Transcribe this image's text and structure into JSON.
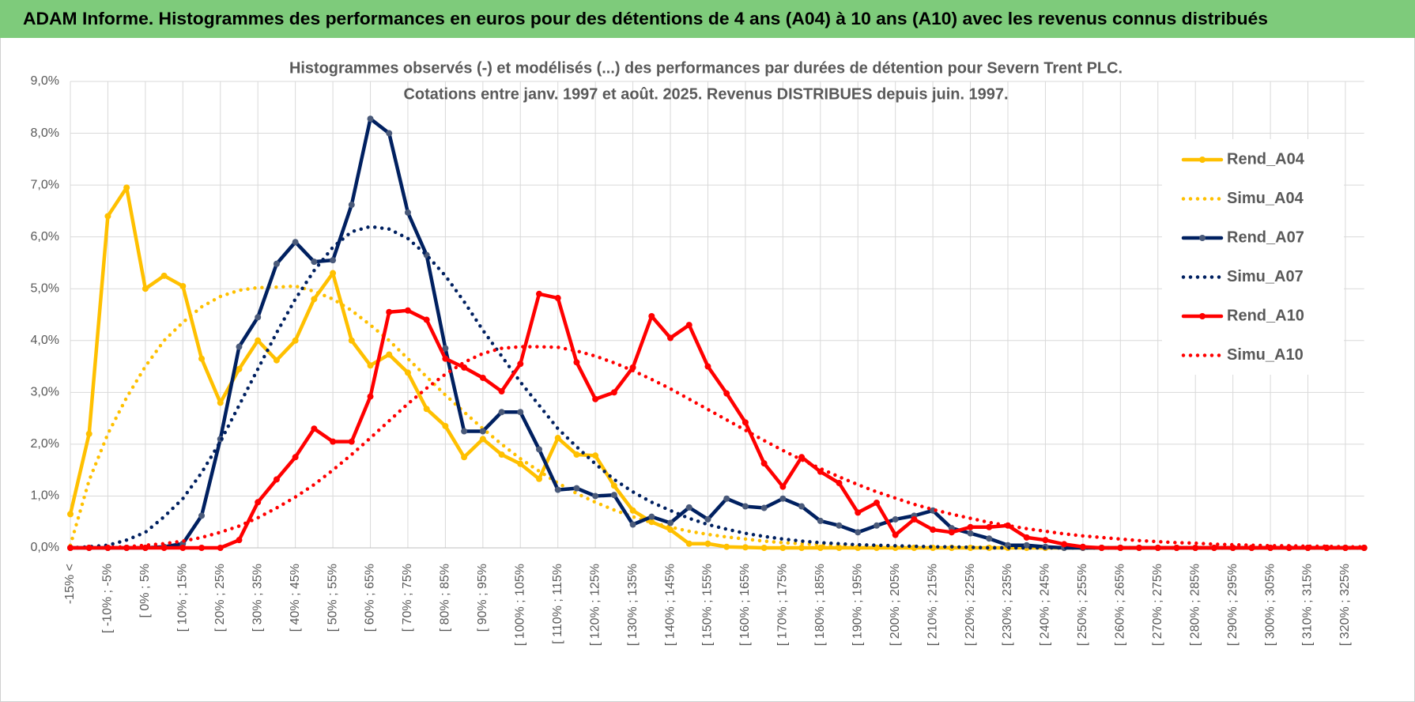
{
  "page_title": "ADAM Informe. Histogrammes des performances en euros pour des détentions de 4 ans (A04) à 10 ans (A10) avec les revenus connus distribués",
  "chart_data": {
    "type": "line",
    "title": [
      "Histogrammes observés (-) et modélisés (...) des performances par durées de détention pour Severn Trent PLC.",
      "Cotations entre janv. 1997 et août. 2025. Revenus DISTRIBUES depuis juin. 1997."
    ],
    "categories": [
      "-15% <",
      null,
      "[ -10% ; -5%",
      null,
      "[ 0% ; 5%",
      null,
      "[ 10% ; 15%",
      null,
      "[ 20% ; 25%",
      null,
      "[ 30% ; 35%",
      null,
      "[ 40% ; 45%",
      null,
      "[ 50% ; 55%",
      null,
      "[ 60% ; 65%",
      null,
      "[ 70% ; 75%",
      null,
      "[ 80% ; 85%",
      null,
      "[ 90% ; 95%",
      null,
      "[ 100% ; 105%",
      null,
      "[ 110% ; 115%",
      null,
      "[ 120% ; 125%",
      null,
      "[ 130% ; 135%",
      null,
      "[ 140% ; 145%",
      null,
      "[ 150% ; 155%",
      null,
      "[ 160% ; 165%",
      null,
      "[ 170% ; 175%",
      null,
      "[ 180% ; 185%",
      null,
      "[ 190% ; 195%",
      null,
      "[ 200% ; 205%",
      null,
      "[ 210% ; 215%",
      null,
      "[ 220% ; 225%",
      null,
      "[ 230% ; 235%",
      null,
      "[ 240% ; 245%",
      null,
      "[ 250% ; 255%",
      null,
      "[ 260% ; 265%",
      null,
      "[ 270% ; 275%",
      null,
      "[ 280% ; 285%",
      null,
      "[ 290% ; 295%",
      null,
      "[ 300% ; 305%",
      null,
      "[ 310% ; 315%",
      null,
      "[ 320% ; 325%",
      null
    ],
    "ylim": [
      0,
      9
    ],
    "yticks": [
      {
        "value": 0,
        "label": "0,0%"
      },
      {
        "value": 1,
        "label": "1,0%"
      },
      {
        "value": 2,
        "label": "2,0%"
      },
      {
        "value": 3,
        "label": "3,0%"
      },
      {
        "value": 4,
        "label": "4,0%"
      },
      {
        "value": 5,
        "label": "5,0%"
      },
      {
        "value": 6,
        "label": "6,0%"
      },
      {
        "value": 7,
        "label": "7,0%"
      },
      {
        "value": 8,
        "label": "8,0%"
      },
      {
        "value": 9,
        "label": "9,0%"
      }
    ],
    "grid": true,
    "legend": "right",
    "series": [
      {
        "name": "Rend_A04",
        "color": "#FFC000",
        "line_style": "solid",
        "marker_color": "#FFC000",
        "values": [
          0.65,
          2.2,
          6.4,
          6.95,
          5.0,
          5.25,
          5.05,
          3.65,
          2.8,
          3.45,
          4.0,
          3.62,
          4.0,
          4.8,
          5.3,
          4.0,
          3.52,
          3.73,
          3.38,
          2.68,
          2.35,
          1.75,
          2.1,
          1.8,
          1.62,
          1.33,
          2.12,
          1.8,
          1.78,
          1.2,
          0.72,
          0.5,
          0.35,
          0.08,
          0.08,
          0.02,
          0.01,
          0,
          0,
          0,
          0,
          0,
          0,
          0,
          0,
          0,
          0,
          0,
          0,
          0,
          0,
          0,
          0,
          0,
          0,
          0,
          0,
          0,
          0,
          0,
          0,
          0,
          0,
          0,
          0,
          0,
          0,
          0,
          0,
          0
        ]
      },
      {
        "name": "Simu_A04",
        "color": "#FFC000",
        "line_style": "dotted",
        "values": [
          0.05,
          1.3,
          2.2,
          2.9,
          3.5,
          4.0,
          4.35,
          4.65,
          4.85,
          4.97,
          5.02,
          5.03,
          5.05,
          4.95,
          4.8,
          4.58,
          4.3,
          4.0,
          3.65,
          3.3,
          2.95,
          2.62,
          2.3,
          2.0,
          1.72,
          1.48,
          1.25,
          1.05,
          0.88,
          0.73,
          0.6,
          0.49,
          0.4,
          0.32,
          0.26,
          0.21,
          0.17,
          0.13,
          0.1,
          0.08,
          0.06,
          0.05,
          0.04,
          0.03,
          0.02,
          0.02,
          0.01,
          0.01,
          0.01,
          0.01,
          0.01,
          0,
          0,
          0,
          0,
          0,
          0,
          0,
          0,
          0,
          0,
          0,
          0,
          0,
          0,
          0,
          0,
          0,
          0,
          0
        ]
      },
      {
        "name": "Rend_A07",
        "color": "#002060",
        "line_style": "solid",
        "marker_color": "#4A5A7A",
        "values": [
          0,
          0,
          0,
          0,
          0,
          0.02,
          0.08,
          0.62,
          2.1,
          3.88,
          4.45,
          5.48,
          5.9,
          5.52,
          5.55,
          6.62,
          8.28,
          8.0,
          6.47,
          5.65,
          3.85,
          2.25,
          2.25,
          2.62,
          2.62,
          1.9,
          1.12,
          1.15,
          1.0,
          1.02,
          0.45,
          0.6,
          0.48,
          0.78,
          0.55,
          0.95,
          0.8,
          0.77,
          0.95,
          0.8,
          0.52,
          0.43,
          0.3,
          0.43,
          0.55,
          0.62,
          0.72,
          0.38,
          0.28,
          0.18,
          0.05,
          0.05,
          0.02,
          0,
          0,
          0,
          0,
          0,
          0,
          0,
          0,
          0,
          0,
          0,
          0,
          0,
          0,
          0,
          0,
          0
        ]
      },
      {
        "name": "Simu_A07",
        "color": "#002060",
        "line_style": "dotted",
        "values": [
          0,
          0.02,
          0.05,
          0.15,
          0.3,
          0.6,
          0.95,
          1.45,
          2.05,
          2.75,
          3.45,
          4.15,
          4.8,
          5.35,
          5.8,
          6.1,
          6.2,
          6.15,
          5.97,
          5.65,
          5.25,
          4.75,
          4.2,
          3.7,
          3.2,
          2.75,
          2.3,
          1.95,
          1.62,
          1.32,
          1.08,
          0.88,
          0.72,
          0.57,
          0.45,
          0.36,
          0.28,
          0.22,
          0.17,
          0.13,
          0.1,
          0.08,
          0.06,
          0.05,
          0.04,
          0.03,
          0.02,
          0.02,
          0.01,
          0,
          0,
          0,
          0,
          0,
          0,
          0,
          0,
          0,
          0,
          0,
          0,
          0,
          0,
          0,
          0,
          0,
          0,
          0,
          0,
          0
        ]
      },
      {
        "name": "Rend_A10",
        "color": "#FF0000",
        "line_style": "solid",
        "marker_color": "#FF0000",
        "values": [
          0,
          0,
          0,
          0,
          0,
          0,
          0,
          0,
          0,
          0.15,
          0.88,
          1.32,
          1.75,
          2.3,
          2.05,
          2.05,
          2.92,
          4.55,
          4.58,
          4.4,
          3.65,
          3.48,
          3.28,
          3.02,
          3.55,
          4.9,
          4.82,
          3.58,
          2.87,
          3.0,
          3.48,
          4.47,
          4.05,
          4.3,
          3.5,
          2.98,
          2.42,
          1.63,
          1.18,
          1.75,
          1.47,
          1.25,
          0.68,
          0.87,
          0.25,
          0.55,
          0.35,
          0.3,
          0.4,
          0.4,
          0.43,
          0.2,
          0.15,
          0.07,
          0.02,
          0,
          0,
          0,
          0,
          0,
          0,
          0,
          0,
          0,
          0,
          0,
          0,
          0,
          0,
          0
        ]
      },
      {
        "name": "Simu_A10",
        "color": "#FF0000",
        "line_style": "dotted",
        "values": [
          0,
          0,
          0.01,
          0.02,
          0.05,
          0.08,
          0.13,
          0.2,
          0.3,
          0.42,
          0.58,
          0.77,
          0.98,
          1.22,
          1.5,
          1.8,
          2.12,
          2.45,
          2.78,
          3.08,
          3.35,
          3.58,
          3.75,
          3.85,
          3.88,
          3.88,
          3.87,
          3.8,
          3.7,
          3.57,
          3.42,
          3.25,
          3.07,
          2.87,
          2.67,
          2.47,
          2.27,
          2.07,
          1.88,
          1.7,
          1.53,
          1.37,
          1.22,
          1.08,
          0.96,
          0.84,
          0.74,
          0.65,
          0.57,
          0.49,
          0.43,
          0.37,
          0.32,
          0.27,
          0.23,
          0.2,
          0.17,
          0.14,
          0.12,
          0.1,
          0.09,
          0.07,
          0.06,
          0.05,
          0.04,
          0.04,
          0.03,
          0.03,
          0.02,
          0.02
        ]
      }
    ]
  }
}
